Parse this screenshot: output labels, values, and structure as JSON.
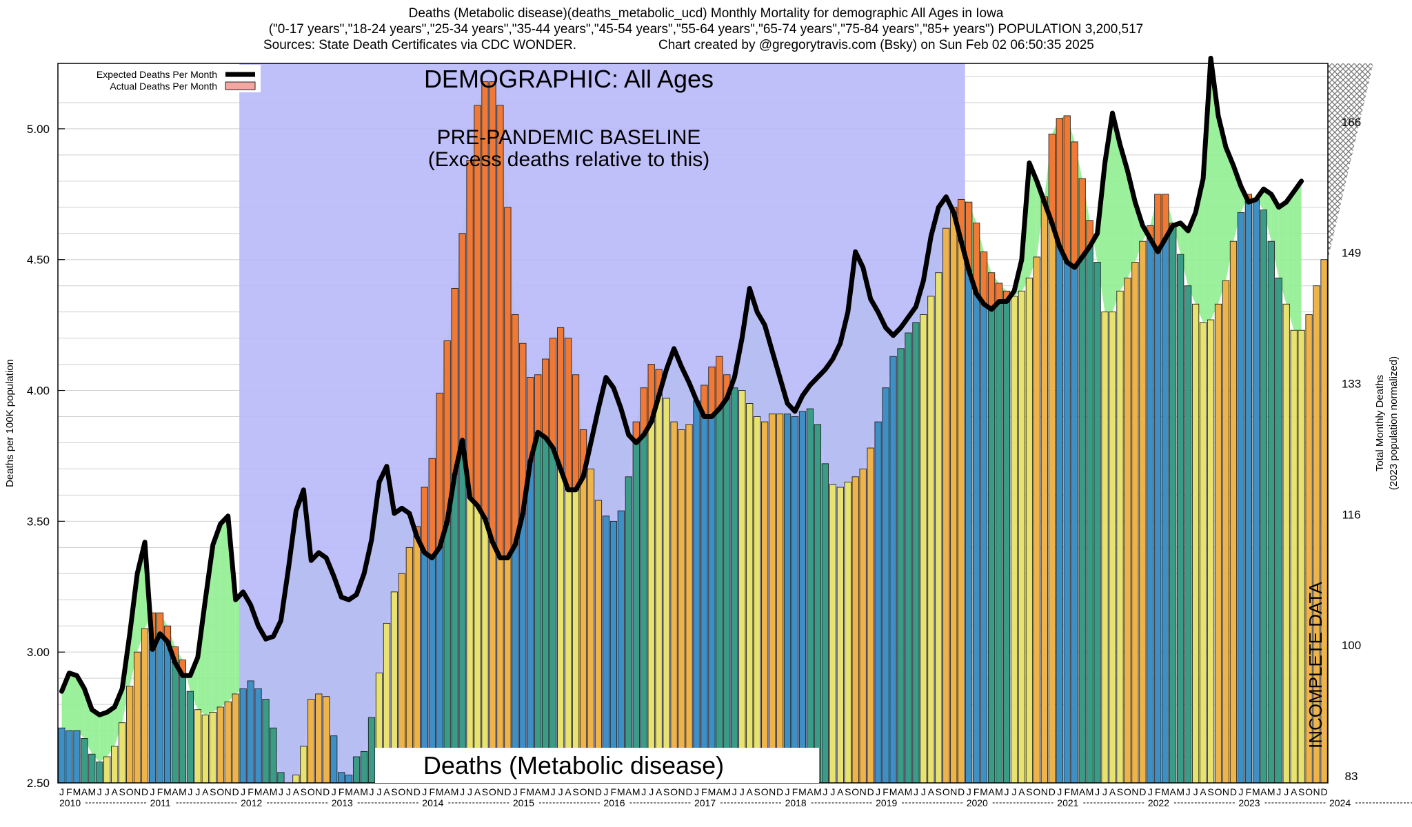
{
  "title": {
    "line1": "Deaths (Metabolic disease)(deaths_metabolic_ucd) Monthly Mortality for demographic All Ages in Iowa",
    "line2": "(\"0-17 years\",\"18-24 years\",\"25-34 years\",\"35-44 years\",\"45-54 years\",\"55-64 years\",\"65-74 years\",\"75-84 years\",\"85+ years\") POPULATION 3,200,517",
    "sources": "Sources: State Death Certificates via CDC WONDER.",
    "credit": "Chart created by @gregorytravis.com (Bsky) on Sun Feb 02 06:50:35 2025"
  },
  "chart_data": {
    "type": "bar",
    "title": "Deaths (Metabolic disease)(deaths_metabolic_ucd) Monthly Mortality for demographic All Ages in Iowa",
    "ylabel": "Deaths per 100K population",
    "y2label_line1": "Total Monthly Deaths",
    "y2label_line2": "(2023 population normalized)",
    "ylim": [
      2.5,
      5.25
    ],
    "yticks": [
      "2.50",
      "3.00",
      "3.50",
      "4.00",
      "4.50",
      "5.00"
    ],
    "y2ticks": [
      "83",
      "100",
      "116",
      "133",
      "149",
      "166"
    ],
    "grid": true,
    "legend_position": "top-left",
    "legend": {
      "expected": "Expected Deaths Per Month",
      "actual": "Actual Deaths Per Month"
    },
    "start": "2010-01",
    "month_letters": [
      "J",
      "F",
      "M",
      "A",
      "M",
      "J",
      "J",
      "A",
      "S",
      "O",
      "N",
      "D"
    ],
    "years": [
      "2010",
      "2011",
      "2012",
      "2013",
      "2014",
      "2015",
      "2016",
      "2017",
      "2018",
      "2019",
      "2020",
      "2021",
      "2022",
      "2023",
      "2024"
    ],
    "baseline_label": "PRE-PANDEMIC BASELINE",
    "baseline_sub": "(Excess deaths relative to this)",
    "demographic_label": "DEMOGRAPHIC: All Ages",
    "bottom_label": "Deaths (Metabolic disease)",
    "incomplete_label": "INCOMPLETE DATA",
    "series": [
      {
        "name": "Actual Deaths Per Month",
        "values": [
          2.71,
          2.7,
          2.7,
          2.67,
          2.61,
          2.58,
          2.6,
          2.64,
          2.73,
          2.87,
          3.0,
          3.09,
          3.15,
          3.15,
          3.1,
          3.02,
          2.97,
          2.85,
          2.78,
          2.76,
          2.77,
          2.79,
          2.81,
          2.84,
          2.86,
          2.89,
          2.86,
          2.82,
          2.71,
          2.54,
          2.5,
          2.53,
          2.64,
          2.82,
          2.84,
          2.83,
          2.68,
          2.54,
          2.53,
          2.6,
          2.62,
          2.75,
          2.92,
          3.11,
          3.23,
          3.3,
          3.4,
          3.48,
          3.63,
          3.74,
          3.99,
          4.19,
          4.39,
          4.6,
          4.88,
          5.09,
          5.18,
          5.18,
          5.09,
          4.7,
          4.29,
          4.18,
          4.05,
          4.06,
          4.12,
          4.2,
          4.24,
          4.2,
          4.06,
          3.85,
          3.7,
          3.58,
          3.52,
          3.5,
          3.54,
          3.67,
          3.88,
          4.01,
          4.1,
          4.08,
          3.97,
          3.88,
          3.85,
          3.87,
          3.96,
          4.02,
          4.09,
          4.13,
          4.06,
          4.01,
          4.0,
          3.95,
          3.9,
          3.88,
          3.91,
          3.91,
          3.91,
          3.9,
          3.92,
          3.93,
          3.87,
          3.72,
          3.64,
          3.63,
          3.65,
          3.67,
          3.7,
          3.78,
          3.88,
          4.01,
          4.13,
          4.16,
          4.22,
          4.26,
          4.29,
          4.36,
          4.45,
          4.62,
          4.7,
          4.73,
          4.72,
          4.64,
          4.53,
          4.45,
          4.41,
          4.38,
          4.36,
          4.38,
          4.43,
          4.51,
          4.74,
          4.98,
          5.04,
          5.05,
          4.95,
          4.81,
          4.65,
          4.49,
          4.3,
          4.3,
          4.38,
          4.43,
          4.49,
          4.57,
          4.63,
          4.75,
          4.75,
          4.64,
          4.52,
          4.4,
          4.33,
          4.26,
          4.27,
          4.33,
          4.42,
          4.57,
          4.68,
          4.75,
          4.73,
          4.69,
          4.57,
          4.43,
          4.33,
          4.23,
          4.23,
          4.29,
          4.4,
          4.5
        ]
      },
      {
        "name": "Expected Deaths Per Month",
        "values": [
          2.85,
          2.92,
          2.91,
          2.86,
          2.78,
          2.76,
          2.77,
          2.79,
          2.86,
          3.07,
          3.3,
          3.42,
          3.01,
          3.07,
          3.04,
          2.96,
          2.91,
          2.91,
          2.98,
          3.2,
          3.41,
          3.49,
          3.52,
          3.2,
          3.23,
          3.18,
          3.1,
          3.05,
          3.06,
          3.12,
          3.32,
          3.54,
          3.62,
          3.35,
          3.38,
          3.36,
          3.29,
          3.21,
          3.2,
          3.22,
          3.3,
          3.43,
          3.65,
          3.71,
          3.53,
          3.55,
          3.53,
          3.44,
          3.38,
          3.36,
          3.4,
          3.5,
          3.68,
          3.81,
          3.59,
          3.56,
          3.51,
          3.42,
          3.36,
          3.36,
          3.41,
          3.53,
          3.73,
          3.84,
          3.82,
          3.78,
          3.7,
          3.62,
          3.62,
          3.67,
          3.8,
          3.93,
          4.05,
          4.01,
          3.93,
          3.83,
          3.8,
          3.83,
          3.88,
          3.98,
          4.08,
          4.16,
          4.09,
          4.03,
          3.96,
          3.9,
          3.9,
          3.93,
          3.97,
          4.05,
          4.2,
          4.39,
          4.3,
          4.25,
          4.15,
          4.05,
          3.95,
          3.92,
          3.98,
          4.02,
          4.05,
          4.08,
          4.12,
          4.18,
          4.3,
          4.53,
          4.47,
          4.35,
          4.3,
          4.24,
          4.21,
          4.24,
          4.28,
          4.32,
          4.42,
          4.59,
          4.7,
          4.74,
          4.68,
          4.57,
          4.46,
          4.37,
          4.33,
          4.31,
          4.34,
          4.34,
          4.38,
          4.5,
          4.87,
          4.8,
          4.72,
          4.64,
          4.55,
          4.49,
          4.47,
          4.51,
          4.55,
          4.6,
          4.87,
          5.06,
          4.94,
          4.84,
          4.72,
          4.63,
          4.58,
          4.53,
          4.58,
          4.63,
          4.64,
          4.61,
          4.68,
          4.81,
          5.27,
          5.05,
          4.93,
          4.86,
          4.78,
          4.72,
          4.73,
          4.77,
          4.75,
          4.7,
          4.72,
          4.76,
          4.8
        ]
      }
    ],
    "incomplete_from": "2024-07"
  }
}
